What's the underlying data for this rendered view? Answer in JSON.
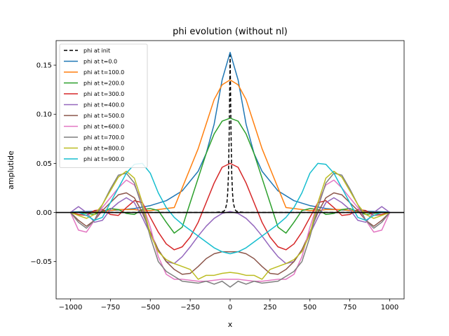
{
  "chart_data": {
    "type": "line",
    "title": "phi evolution (without nl)",
    "xlabel": "x",
    "ylabel": "amplutide",
    "xlim": [
      -1090,
      1090
    ],
    "ylim": [
      -0.088,
      0.175
    ],
    "xticks": [
      -1000,
      -750,
      -500,
      -250,
      0,
      250,
      500,
      750,
      1000
    ],
    "xtick_labels": [
      "−1000",
      "−750",
      "−500",
      "−250",
      "0",
      "250",
      "500",
      "750",
      "1000"
    ],
    "yticks": [
      -0.05,
      0.0,
      0.05,
      0.1,
      0.15
    ],
    "ytick_labels": [
      "−0.05",
      "0.00",
      "0.05",
      "0.10",
      "0.15"
    ],
    "grid": false,
    "legend_position": "top-left",
    "hline": {
      "y": 0.0,
      "color": "#000000"
    },
    "series": [
      {
        "name": "phi at init",
        "color": "#000000",
        "dashed": true,
        "x": [
          -1000,
          -500,
          -200,
          -100,
          -60,
          -40,
          -30,
          -20,
          -15,
          -10,
          -5,
          0,
          5,
          10,
          15,
          20,
          30,
          40,
          60,
          100,
          200,
          500,
          1000
        ],
        "y": [
          0,
          0,
          0,
          0,
          0.0005,
          0.0012,
          0.003,
          0.01,
          0.02,
          0.04,
          0.09,
          0.163,
          0.09,
          0.04,
          0.02,
          0.01,
          0.003,
          0.0012,
          0.0005,
          0,
          0,
          0,
          0
        ]
      },
      {
        "name": "phi at t=0.0",
        "color": "#1f77b4",
        "x": [
          -1000,
          -900,
          -800,
          -700,
          -600,
          -500,
          -400,
          -300,
          -200,
          -150,
          -100,
          -50,
          0,
          50,
          100,
          150,
          200,
          300,
          400,
          500,
          600,
          700,
          800,
          900,
          1000
        ],
        "y": [
          0.0005,
          0.001,
          0.0015,
          0.0025,
          0.004,
          0.007,
          0.012,
          0.022,
          0.042,
          0.06,
          0.09,
          0.135,
          0.163,
          0.135,
          0.09,
          0.06,
          0.042,
          0.022,
          0.012,
          0.007,
          0.004,
          0.0025,
          0.0015,
          0.001,
          0.0005
        ]
      },
      {
        "name": "phi at t=100.0",
        "color": "#ff7f0e",
        "x": [
          -1000,
          -950,
          -900,
          -850,
          -800,
          -750,
          -700,
          -650,
          -600,
          -550,
          -500,
          -450,
          -400,
          -350,
          -300,
          -250,
          -200,
          -150,
          -100,
          -50,
          0,
          50,
          100,
          150,
          200,
          250,
          300,
          350,
          400,
          450,
          500,
          550,
          600,
          650,
          700,
          750,
          800,
          850,
          900,
          950,
          1000
        ],
        "y": [
          0,
          0,
          0,
          0.0005,
          0.001,
          0.002,
          0.003,
          0.003,
          0.003,
          0.002,
          0.002,
          0.003,
          0.004,
          0.005,
          0.025,
          0.045,
          0.065,
          0.09,
          0.115,
          0.13,
          0.135,
          0.13,
          0.115,
          0.09,
          0.065,
          0.045,
          0.025,
          0.005,
          0.004,
          0.003,
          0.002,
          0.002,
          0.003,
          0.003,
          0.003,
          0.002,
          0.001,
          0.0005,
          0,
          0,
          0
        ]
      },
      {
        "name": "phi at t=200.0",
        "color": "#2ca02c",
        "x": [
          -1000,
          -950,
          -900,
          -850,
          -800,
          -750,
          -700,
          -650,
          -600,
          -550,
          -500,
          -450,
          -400,
          -350,
          -300,
          -250,
          -200,
          -150,
          -100,
          -50,
          0,
          50,
          100,
          150,
          200,
          250,
          300,
          350,
          400,
          450,
          500,
          550,
          600,
          650,
          700,
          750,
          800,
          850,
          900,
          950,
          1000
        ],
        "y": [
          0,
          0,
          -0.001,
          -0.002,
          0.001,
          0.004,
          0.003,
          -0.001,
          -0.002,
          0.003,
          0.004,
          0.002,
          -0.01,
          -0.021,
          -0.015,
          0.01,
          0.035,
          0.06,
          0.08,
          0.093,
          0.096,
          0.093,
          0.08,
          0.06,
          0.035,
          0.01,
          -0.015,
          -0.021,
          -0.01,
          0.002,
          0.004,
          0.003,
          -0.002,
          -0.001,
          0.003,
          0.004,
          0.001,
          -0.002,
          -0.001,
          0,
          0
        ]
      },
      {
        "name": "phi at t=300.0",
        "color": "#d62728",
        "x": [
          -1000,
          -950,
          -900,
          -850,
          -800,
          -750,
          -700,
          -650,
          -600,
          -550,
          -500,
          -450,
          -400,
          -350,
          -300,
          -250,
          -200,
          -150,
          -100,
          -50,
          0,
          50,
          100,
          150,
          200,
          250,
          300,
          350,
          400,
          450,
          500,
          550,
          600,
          650,
          700,
          750,
          800,
          850,
          900,
          950,
          1000
        ],
        "y": [
          0,
          -0.002,
          -0.003,
          0.002,
          0.003,
          -0.002,
          -0.003,
          0.005,
          0.012,
          0.01,
          -0.005,
          -0.02,
          -0.032,
          -0.038,
          -0.035,
          -0.025,
          -0.01,
          0.01,
          0.03,
          0.046,
          0.05,
          0.046,
          0.03,
          0.01,
          -0.01,
          -0.025,
          -0.035,
          -0.038,
          -0.032,
          -0.02,
          -0.005,
          0.01,
          0.012,
          0.005,
          -0.003,
          -0.002,
          0.003,
          0.002,
          -0.003,
          -0.002,
          0
        ]
      },
      {
        "name": "phi at t=400.0",
        "color": "#9467bd",
        "x": [
          -1000,
          -950,
          -900,
          -850,
          -800,
          -750,
          -700,
          -650,
          -600,
          -550,
          -500,
          -450,
          -400,
          -350,
          -300,
          -250,
          -200,
          -150,
          -100,
          -50,
          0,
          50,
          100,
          150,
          200,
          250,
          300,
          350,
          400,
          450,
          500,
          550,
          600,
          650,
          700,
          750,
          800,
          850,
          900,
          950,
          1000
        ],
        "y": [
          0,
          0.006,
          0,
          -0.01,
          -0.008,
          0.003,
          0.01,
          0.015,
          0.01,
          -0.005,
          -0.022,
          -0.038,
          -0.05,
          -0.052,
          -0.045,
          -0.035,
          -0.024,
          -0.014,
          -0.006,
          -0.001,
          0.001,
          -0.001,
          -0.006,
          -0.014,
          -0.024,
          -0.035,
          -0.045,
          -0.052,
          -0.05,
          -0.038,
          -0.022,
          -0.005,
          0.01,
          0.015,
          0.01,
          0.003,
          -0.008,
          -0.01,
          0,
          0.006,
          0
        ]
      },
      {
        "name": "phi at t=500.0",
        "color": "#8c564b",
        "x": [
          -1000,
          -950,
          -900,
          -850,
          -800,
          -750,
          -700,
          -650,
          -600,
          -550,
          -500,
          -450,
          -400,
          -350,
          -300,
          -250,
          -200,
          -150,
          -100,
          -50,
          0,
          50,
          100,
          150,
          200,
          250,
          300,
          350,
          400,
          450,
          500,
          550,
          600,
          650,
          700,
          750,
          800,
          850,
          900,
          950,
          1000
        ],
        "y": [
          0,
          -0.008,
          -0.014,
          -0.008,
          0.002,
          0.01,
          0.018,
          0.02,
          0.015,
          0,
          -0.02,
          -0.038,
          -0.05,
          -0.058,
          -0.063,
          -0.062,
          -0.055,
          -0.047,
          -0.042,
          -0.04,
          -0.04,
          -0.04,
          -0.042,
          -0.047,
          -0.055,
          -0.062,
          -0.063,
          -0.058,
          -0.05,
          -0.038,
          -0.02,
          0,
          0.015,
          0.02,
          0.018,
          0.01,
          0.002,
          -0.008,
          -0.014,
          -0.008,
          0
        ]
      },
      {
        "name": "phi at t=600.0",
        "color": "#e377c2",
        "x": [
          -1000,
          -950,
          -900,
          -850,
          -800,
          -750,
          -700,
          -650,
          -600,
          -550,
          -500,
          -450,
          -400,
          -350,
          -300,
          -250,
          -200,
          -150,
          -100,
          -50,
          0,
          50,
          100,
          150,
          200,
          250,
          300,
          350,
          400,
          450,
          500,
          550,
          600,
          650,
          700,
          750,
          800,
          850,
          900,
          950,
          1000
        ],
        "y": [
          0,
          -0.018,
          -0.02,
          -0.008,
          0.005,
          0.015,
          0.025,
          0.033,
          0.028,
          0.01,
          -0.015,
          -0.045,
          -0.063,
          -0.068,
          -0.068,
          -0.069,
          -0.07,
          -0.07,
          -0.069,
          -0.068,
          -0.068,
          -0.068,
          -0.069,
          -0.07,
          -0.07,
          -0.069,
          -0.068,
          -0.068,
          -0.063,
          -0.045,
          -0.015,
          0.01,
          0.028,
          0.033,
          0.025,
          0.015,
          0.005,
          -0.008,
          -0.02,
          -0.018,
          0
        ]
      },
      {
        "name": "phi at t=700.0",
        "color": "#7f7f7f",
        "x": [
          -1000,
          -950,
          -900,
          -850,
          -800,
          -750,
          -700,
          -650,
          -600,
          -550,
          -500,
          -450,
          -400,
          -350,
          -300,
          -250,
          -200,
          -150,
          -100,
          -50,
          0,
          50,
          100,
          150,
          200,
          250,
          300,
          350,
          400,
          450,
          500,
          550,
          600,
          650,
          700,
          750,
          800,
          850,
          900,
          950,
          1000
        ],
        "y": [
          0,
          -0.01,
          -0.016,
          -0.008,
          0.008,
          0.024,
          0.038,
          0.04,
          0.03,
          0.005,
          -0.025,
          -0.05,
          -0.06,
          -0.065,
          -0.07,
          -0.071,
          -0.072,
          -0.07,
          -0.073,
          -0.07,
          -0.076,
          -0.07,
          -0.073,
          -0.07,
          -0.072,
          -0.071,
          -0.07,
          -0.065,
          -0.06,
          -0.05,
          -0.025,
          0.005,
          0.03,
          0.04,
          0.038,
          0.024,
          0.008,
          -0.008,
          -0.016,
          -0.01,
          0
        ]
      },
      {
        "name": "phi at t=800.0",
        "color": "#bcbd22",
        "x": [
          -1000,
          -950,
          -900,
          -850,
          -800,
          -750,
          -700,
          -650,
          -600,
          -550,
          -500,
          -450,
          -400,
          -350,
          -300,
          -250,
          -200,
          -150,
          -100,
          -50,
          0,
          50,
          100,
          150,
          200,
          250,
          300,
          350,
          400,
          450,
          500,
          550,
          600,
          650,
          700,
          750,
          800,
          850,
          900,
          950,
          1000
        ],
        "y": [
          0,
          -0.003,
          -0.006,
          -0.002,
          0.008,
          0.022,
          0.036,
          0.042,
          0.035,
          0.01,
          -0.022,
          -0.04,
          -0.048,
          -0.052,
          -0.055,
          -0.058,
          -0.068,
          -0.064,
          -0.064,
          -0.062,
          -0.061,
          -0.062,
          -0.064,
          -0.064,
          -0.068,
          -0.058,
          -0.055,
          -0.052,
          -0.048,
          -0.04,
          -0.022,
          0.01,
          0.035,
          0.042,
          0.036,
          0.022,
          0.008,
          -0.002,
          -0.006,
          -0.003,
          0
        ]
      },
      {
        "name": "phi at t=900.0",
        "color": "#17becf",
        "x": [
          -1000,
          -950,
          -900,
          -850,
          -800,
          -750,
          -700,
          -650,
          -600,
          -550,
          -500,
          -450,
          -400,
          -350,
          -300,
          -250,
          -200,
          -150,
          -100,
          -50,
          0,
          50,
          100,
          150,
          200,
          250,
          300,
          350,
          400,
          450,
          500,
          550,
          600,
          650,
          700,
          750,
          800,
          850,
          900,
          950,
          1000
        ],
        "y": [
          0,
          0,
          -0.003,
          -0.008,
          -0.005,
          0.01,
          0.025,
          0.04,
          0.049,
          0.05,
          0.04,
          0.02,
          0.005,
          -0.005,
          -0.012,
          -0.018,
          -0.024,
          -0.03,
          -0.036,
          -0.04,
          -0.042,
          -0.04,
          -0.036,
          -0.03,
          -0.024,
          -0.018,
          -0.012,
          -0.005,
          0.005,
          0.02,
          0.04,
          0.05,
          0.049,
          0.04,
          0.025,
          0.01,
          -0.005,
          -0.008,
          -0.003,
          0,
          0
        ]
      }
    ]
  }
}
